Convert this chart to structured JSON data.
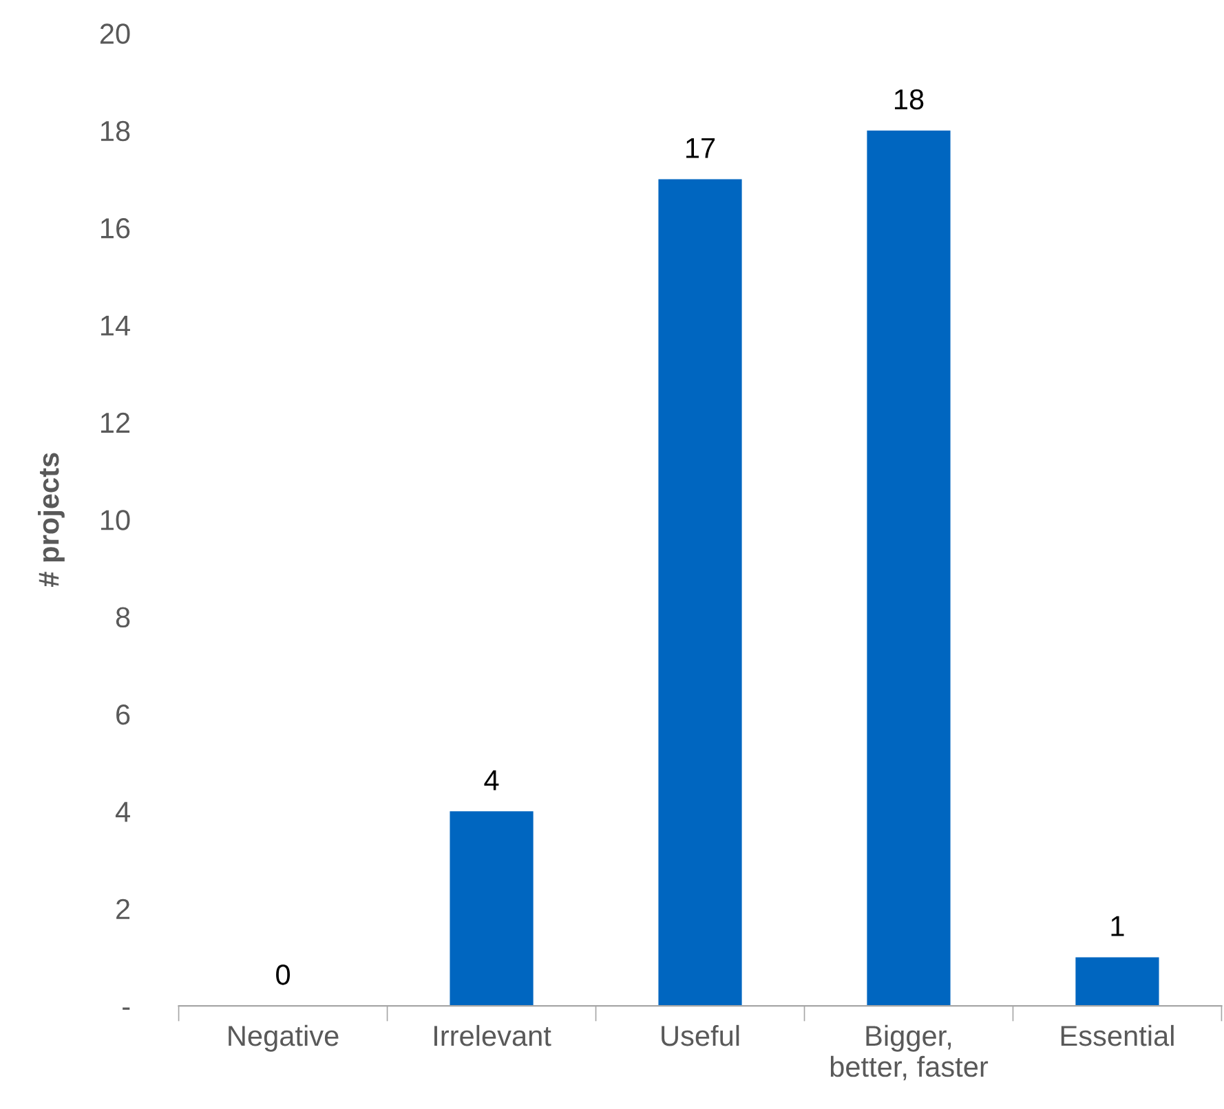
{
  "chart_data": {
    "type": "bar",
    "ylabel": "# projects",
    "categories": [
      "Negative",
      "Irrelevant",
      "Useful",
      "Bigger,\nbetter, faster",
      "Essential"
    ],
    "values": [
      0,
      4,
      17,
      18,
      1
    ],
    "color": "#0066c0",
    "ylim": [
      0,
      20
    ],
    "yticks": [
      {
        "value": 0,
        "label": "-"
      },
      2,
      4,
      6,
      8,
      10,
      12,
      14,
      16,
      18,
      20
    ],
    "data_labels": true,
    "grid": false
  }
}
